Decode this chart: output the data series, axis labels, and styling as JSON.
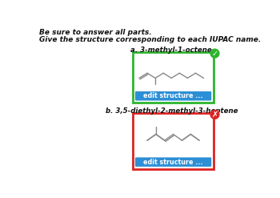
{
  "title_line1": "Be sure to answer all parts.",
  "title_line2": "Give the structure corresponding to each IUPAC name.",
  "part_a_label": "a. 3-methyl-1-octene",
  "part_b_label": "b. 3,5-diethyl-2-methyl-3-heptene",
  "button_text": "edit structure ...",
  "button_color": "#2d8fd5",
  "button_text_color": "white",
  "box_a_border_color": "#2db52d",
  "box_b_border_color": "#dd2222",
  "check_color": "#2db52d",
  "cross_color": "#dd2222",
  "background": "#ffffff",
  "text_color": "#111111",
  "molecule_color": "#888888",
  "font_size_header": 6.5,
  "font_size_label": 6.2,
  "font_size_button": 5.8
}
